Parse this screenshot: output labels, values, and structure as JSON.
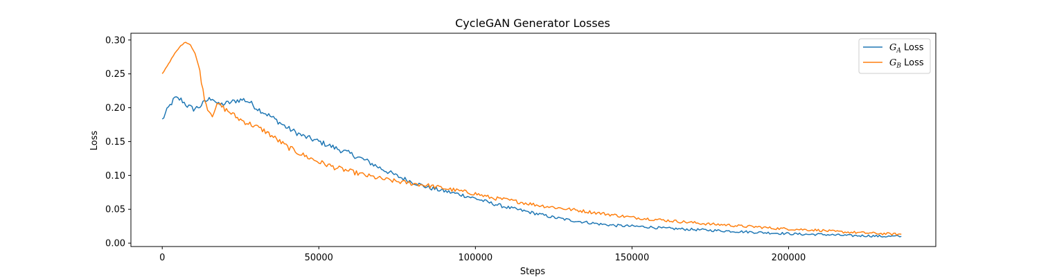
{
  "chart_data": {
    "type": "line",
    "title": "CycleGAN Generator Losses",
    "xlabel": "Steps",
    "ylabel": "Loss",
    "xlim": [
      -10000,
      247000
    ],
    "ylim": [
      -0.005,
      0.31
    ],
    "xticks": [
      0,
      50000,
      100000,
      150000,
      200000
    ],
    "xtick_labels": [
      "0",
      "50000",
      "100000",
      "150000",
      "200000"
    ],
    "yticks": [
      0.0,
      0.05,
      0.1,
      0.15,
      0.2,
      0.25,
      0.3
    ],
    "ytick_labels": [
      "0.00",
      "0.05",
      "0.10",
      "0.15",
      "0.20",
      "0.25",
      "0.30"
    ],
    "grid": false,
    "legend_position": "top-right",
    "series": [
      {
        "name": "G_A Loss",
        "legend_symbol": "G",
        "legend_subscript": "A",
        "legend_suffix": " Loss",
        "color": "#1f77b4",
        "x": [
          0,
          2000,
          4000,
          6000,
          8000,
          10000,
          12000,
          14000,
          16000,
          18000,
          20000,
          22000,
          24000,
          26000,
          28000,
          30000,
          35000,
          40000,
          45000,
          50000,
          55000,
          60000,
          65000,
          70000,
          75000,
          80000,
          85000,
          90000,
          95000,
          100000,
          105000,
          110000,
          115000,
          120000,
          125000,
          130000,
          135000,
          140000,
          145000,
          150000,
          155000,
          160000,
          165000,
          170000,
          175000,
          180000,
          185000,
          190000,
          195000,
          200000,
          205000,
          210000,
          215000,
          220000,
          225000,
          230000,
          236000
        ],
        "y": [
          0.182,
          0.2,
          0.214,
          0.212,
          0.203,
          0.198,
          0.202,
          0.21,
          0.215,
          0.204,
          0.206,
          0.208,
          0.211,
          0.212,
          0.208,
          0.2,
          0.186,
          0.17,
          0.158,
          0.15,
          0.141,
          0.132,
          0.122,
          0.11,
          0.099,
          0.09,
          0.082,
          0.077,
          0.072,
          0.066,
          0.059,
          0.053,
          0.048,
          0.043,
          0.038,
          0.034,
          0.031,
          0.028,
          0.026,
          0.025,
          0.024,
          0.022,
          0.021,
          0.02,
          0.019,
          0.018,
          0.017,
          0.016,
          0.015,
          0.014,
          0.013,
          0.013,
          0.012,
          0.011,
          0.011,
          0.01,
          0.01
        ]
      },
      {
        "name": "G_B Loss",
        "legend_symbol": "G",
        "legend_subscript": "B",
        "legend_suffix": " Loss",
        "color": "#ff7f0e",
        "x": [
          0,
          2000,
          4000,
          6000,
          7500,
          9000,
          10500,
          12000,
          13000,
          14000,
          15000,
          16000,
          17000,
          18000,
          20000,
          22000,
          24000,
          26000,
          28000,
          30000,
          33000,
          36000,
          40000,
          45000,
          50000,
          55000,
          60000,
          65000,
          70000,
          75000,
          80000,
          85000,
          90000,
          95000,
          100000,
          105000,
          110000,
          115000,
          120000,
          125000,
          130000,
          135000,
          140000,
          145000,
          150000,
          155000,
          160000,
          165000,
          170000,
          175000,
          180000,
          185000,
          190000,
          195000,
          200000,
          205000,
          210000,
          215000,
          220000,
          225000,
          230000,
          236000
        ],
        "y": [
          0.25,
          0.265,
          0.28,
          0.292,
          0.297,
          0.293,
          0.28,
          0.255,
          0.225,
          0.205,
          0.195,
          0.19,
          0.2,
          0.205,
          0.198,
          0.192,
          0.185,
          0.18,
          0.176,
          0.172,
          0.165,
          0.155,
          0.142,
          0.13,
          0.12,
          0.112,
          0.106,
          0.1,
          0.095,
          0.091,
          0.088,
          0.085,
          0.081,
          0.077,
          0.073,
          0.067,
          0.064,
          0.06,
          0.056,
          0.053,
          0.05,
          0.047,
          0.044,
          0.041,
          0.038,
          0.036,
          0.034,
          0.032,
          0.03,
          0.028,
          0.027,
          0.025,
          0.024,
          0.022,
          0.021,
          0.02,
          0.019,
          0.017,
          0.016,
          0.015,
          0.014,
          0.013
        ]
      }
    ]
  }
}
